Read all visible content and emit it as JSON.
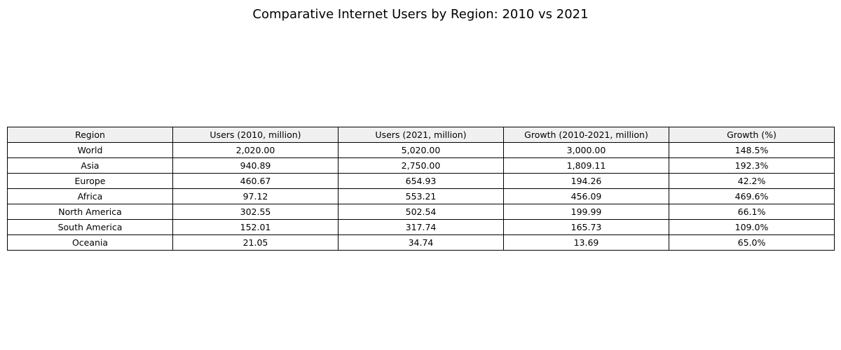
{
  "chart_data": {
    "type": "table",
    "title": "Comparative Internet Users by Region: 2010 vs 2021",
    "columns": [
      "Region",
      "Users (2010, million)",
      "Users (2021, million)",
      "Growth (2010-2021, million)",
      "Growth (%)"
    ],
    "rows": [
      [
        "World",
        "2,020.00",
        "5,020.00",
        "3,000.00",
        "148.5%"
      ],
      [
        "Asia",
        "940.89",
        "2,750.00",
        "1,809.11",
        "192.3%"
      ],
      [
        "Europe",
        "460.67",
        "654.93",
        "194.26",
        "42.2%"
      ],
      [
        "Africa",
        "97.12",
        "553.21",
        "456.09",
        "469.6%"
      ],
      [
        "North America",
        "302.55",
        "502.54",
        "199.99",
        "66.1%"
      ],
      [
        "South America",
        "152.01",
        "317.74",
        "165.73",
        "109.0%"
      ],
      [
        "Oceania",
        "21.05",
        "34.74",
        "13.69",
        "65.0%"
      ]
    ],
    "header_color": "#f0f0f0",
    "grid": true
  }
}
